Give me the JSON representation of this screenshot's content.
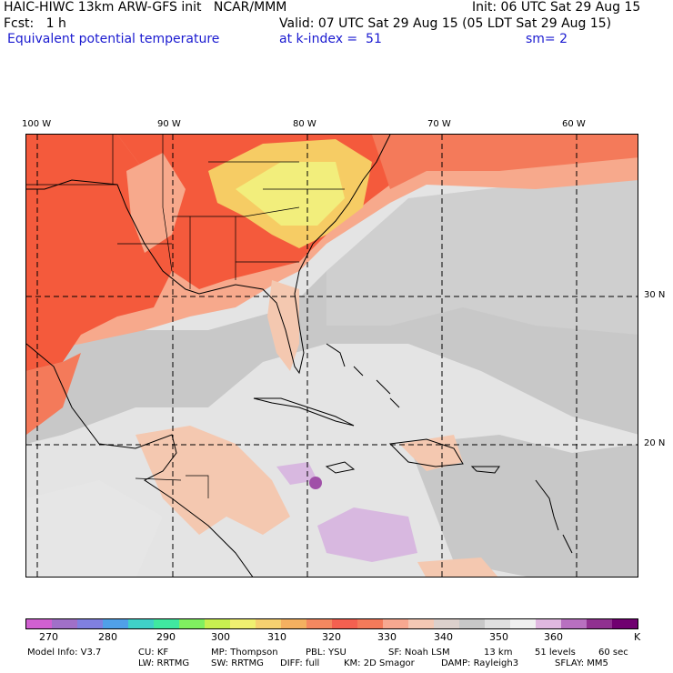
{
  "header": {
    "model_title": "HAIC-HIWC 13km ARW-GFS init   NCAR/MMM",
    "init": "Init: 06 UTC Sat 29 Aug 15",
    "fcst": "Fcst:   1 h",
    "valid": "Valid: 07 UTC Sat 29 Aug 15 (05 LDT Sat 29 Aug 15)",
    "field": "Equivalent potential temperature",
    "level": "at k-index =  51",
    "smooth": "sm= 2"
  },
  "map": {
    "lon_labels": [
      "100 W",
      "90 W",
      "80 W",
      "70 W",
      "60 W"
    ],
    "lat_labels": [
      "30 N",
      "20 N"
    ],
    "colors": {
      "red": "#f45a3c",
      "orange_red": "#f47a5a",
      "salmon": "#f7a98c",
      "peach": "#f4c8b0",
      "yellow": "#f2ee7c",
      "gold": "#f6cc64",
      "gray": "#c8c8c8",
      "light_gray": "#e4e4e4",
      "lavender": "#d8b8e0",
      "purple": "#a050a8"
    }
  },
  "colorbar": {
    "colors": [
      "#d060d0",
      "#a070c8",
      "#8080e0",
      "#50a0e8",
      "#40d0c8",
      "#40e8a0",
      "#80f060",
      "#c8f050",
      "#f0f070",
      "#f6d070",
      "#f4b060",
      "#f48860",
      "#f46050",
      "#f47a5a",
      "#f7a890",
      "#f4c8b4",
      "#dcd0cc",
      "#c8c8c8",
      "#e0e0e0",
      "#f0f0f0",
      "#e0b8e0",
      "#b870c0",
      "#903090",
      "#700070"
    ],
    "labels": [
      "270",
      "280",
      "290",
      "300",
      "310",
      "320",
      "330",
      "340",
      "350",
      "360",
      "K"
    ]
  },
  "footer": {
    "line1": [
      "Model Info: V3.7",
      "CU: KF",
      "MP: Thompson",
      "PBL: YSU",
      "SF: Noah LSM",
      "13 km",
      "51 levels",
      "60 sec"
    ],
    "line2": [
      "LW: RRTMG",
      "SW: RRTMG",
      "DIFF: full",
      "KM: 2D Smagor",
      "DAMP: Rayleigh3",
      "SFLAY: MM5"
    ]
  }
}
